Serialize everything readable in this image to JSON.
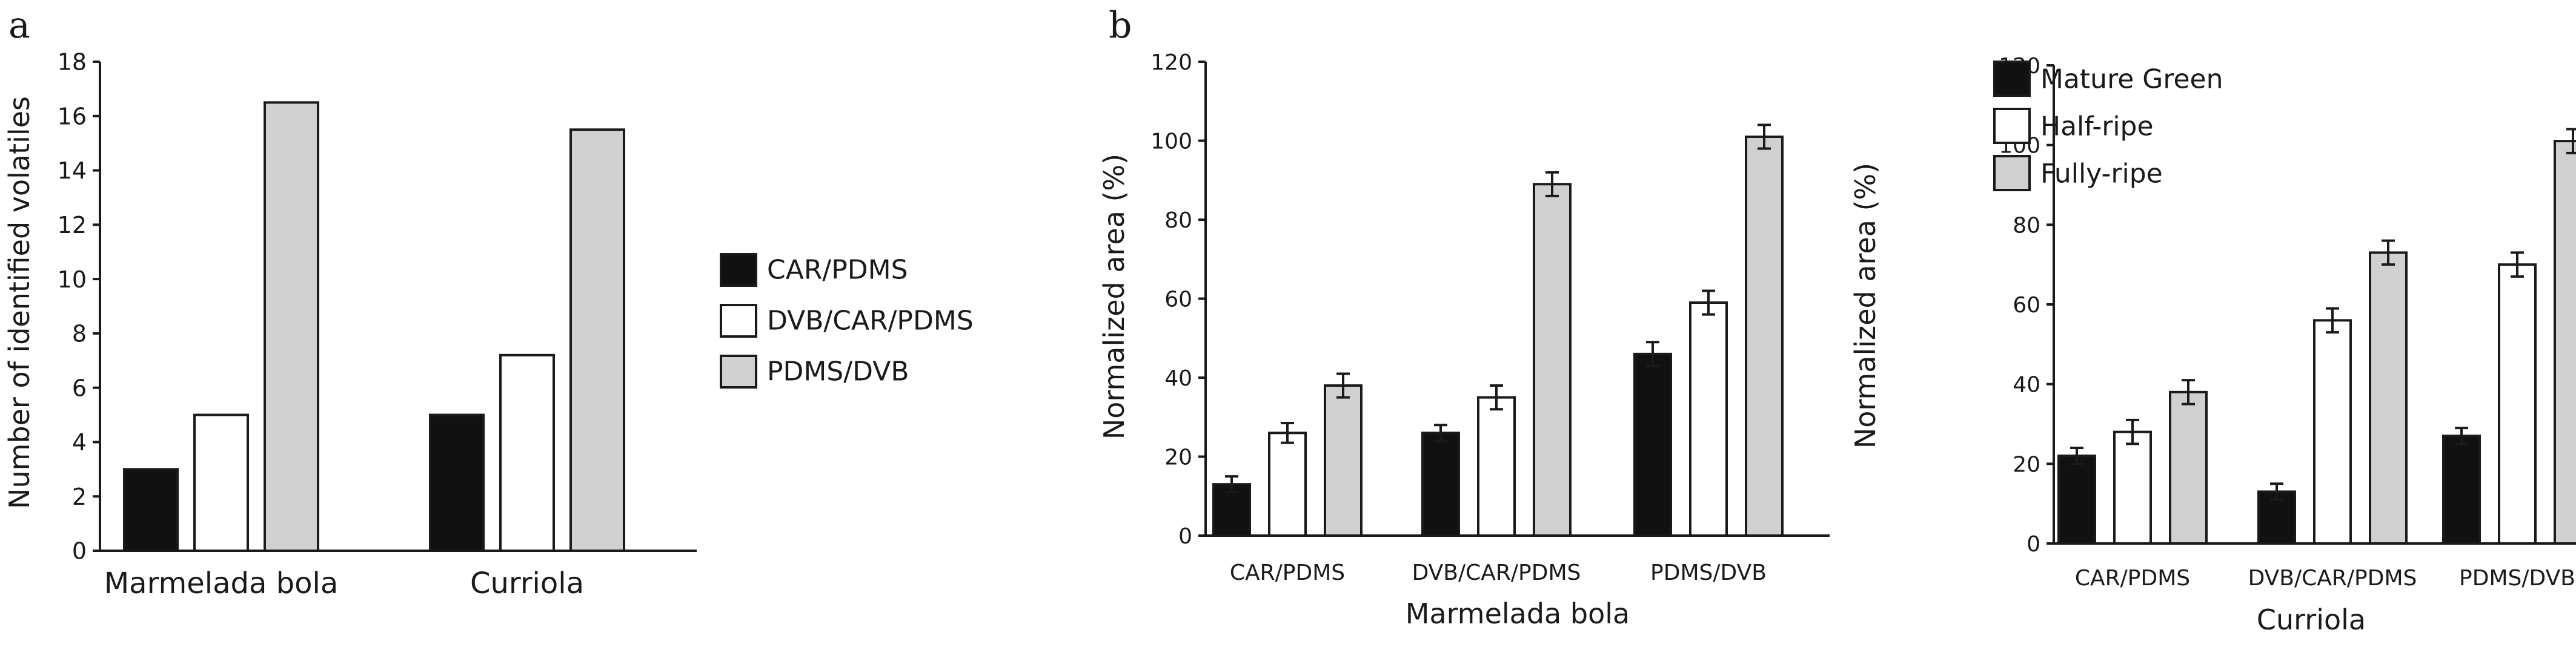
{
  "panels": [
    {
      "label": "a"
    },
    {
      "label": "b"
    }
  ],
  "colors": {
    "black": "#111111",
    "white": "#ffffff",
    "gray": "#d0d0d0"
  },
  "chart_data": [
    {
      "type": "bar",
      "panel": "a",
      "categories": [
        "Marmelada bola",
        "Curriola"
      ],
      "series": [
        {
          "name": "CAR/PDMS",
          "values": [
            3,
            5
          ],
          "color": "#111111"
        },
        {
          "name": "DVB/CAR/PDMS",
          "values": [
            5,
            7.2
          ],
          "color": "#ffffff"
        },
        {
          "name": "PDMS/DVB",
          "values": [
            16.5,
            15.5
          ],
          "color": "#d0d0d0"
        }
      ],
      "ylabel": "Number of identified volatiles",
      "xlabel": "",
      "ylim": [
        0,
        18
      ],
      "yticks": [
        0,
        2,
        4,
        6,
        8,
        10,
        12,
        14,
        16,
        18
      ],
      "legend_position": "right"
    },
    {
      "type": "bar",
      "panel": "b",
      "categories": [
        "CAR/PDMS",
        "DVB/CAR/PDMS",
        "PDMS/DVB"
      ],
      "series": [
        {
          "values": [
            13,
            26,
            46
          ],
          "errors": [
            2,
            2,
            3
          ],
          "color": "#111111"
        },
        {
          "values": [
            26,
            35,
            59
          ],
          "errors": [
            2.5,
            3,
            3
          ],
          "color": "#ffffff"
        },
        {
          "values": [
            38,
            89,
            101
          ],
          "errors": [
            3,
            3,
            3
          ],
          "color": "#d0d0d0"
        }
      ],
      "ylabel": "Normalized area (%)",
      "xlabel": "Marmelada bola",
      "ylim": [
        0,
        120
      ],
      "yticks": [
        0,
        20,
        40,
        60,
        80,
        100,
        120
      ]
    },
    {
      "type": "bar",
      "panel": "b",
      "categories": [
        "CAR/PDMS",
        "DVB/CAR/PDMS",
        "PDMS/DVB"
      ],
      "series": [
        {
          "name": "Mature Green",
          "values": [
            22,
            13,
            27
          ],
          "errors": [
            2,
            2,
            2
          ],
          "color": "#111111"
        },
        {
          "name": "Half-ripe",
          "values": [
            28,
            56,
            70
          ],
          "errors": [
            3,
            3,
            3
          ],
          "color": "#ffffff"
        },
        {
          "name": "Fully-ripe",
          "values": [
            38,
            73,
            101
          ],
          "errors": [
            3,
            3,
            3
          ],
          "color": "#d0d0d0"
        }
      ],
      "ylabel": "Normalized area (%)",
      "xlabel": "Curriola",
      "ylim": [
        0,
        120
      ],
      "yticks": [
        0,
        20,
        40,
        60,
        80,
        100,
        120
      ],
      "legend_position": "top-left"
    }
  ]
}
